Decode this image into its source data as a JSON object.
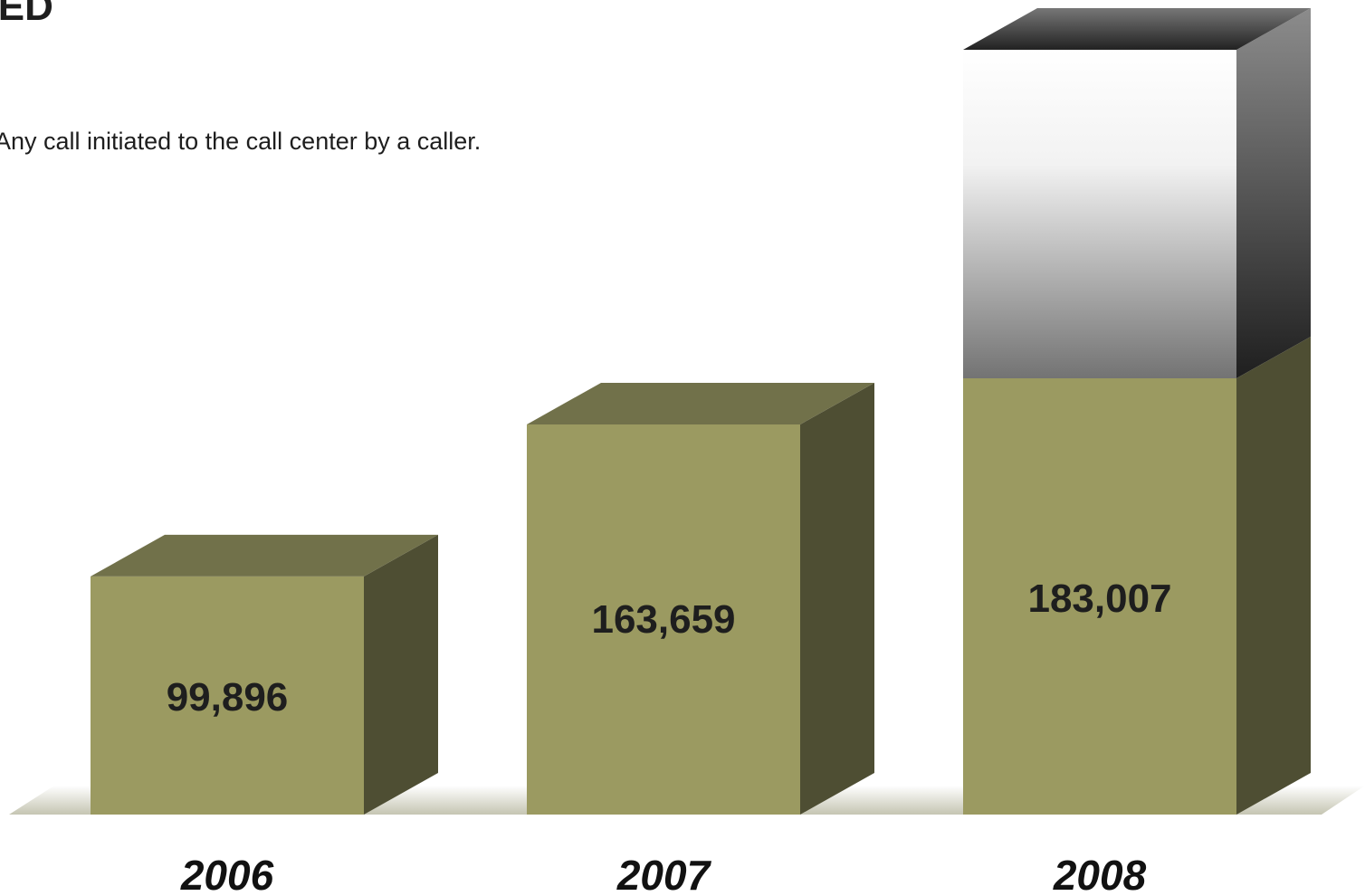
{
  "page": {
    "title": "RED",
    "subtitle": "Any call initiated to the call center by a caller."
  },
  "colors": {
    "front": "#9b9a61",
    "top": "#71714a",
    "side": "#4e4e33",
    "ghost_light": "#ffffff",
    "ghost_dark": "#747474",
    "ghost_side_dark": "#1f1f1f",
    "floor": "#c5c5b2"
  },
  "chart_data": {
    "type": "bar",
    "title": "",
    "xlabel": "",
    "ylabel": "",
    "categories": [
      "2006",
      "2007",
      "2008"
    ],
    "values": [
      99896,
      163659,
      183007
    ],
    "value_labels": [
      "99,896",
      "163,659",
      "183,007"
    ],
    "ylim": [
      0,
      183007
    ],
    "grid": false,
    "legend": "none"
  }
}
